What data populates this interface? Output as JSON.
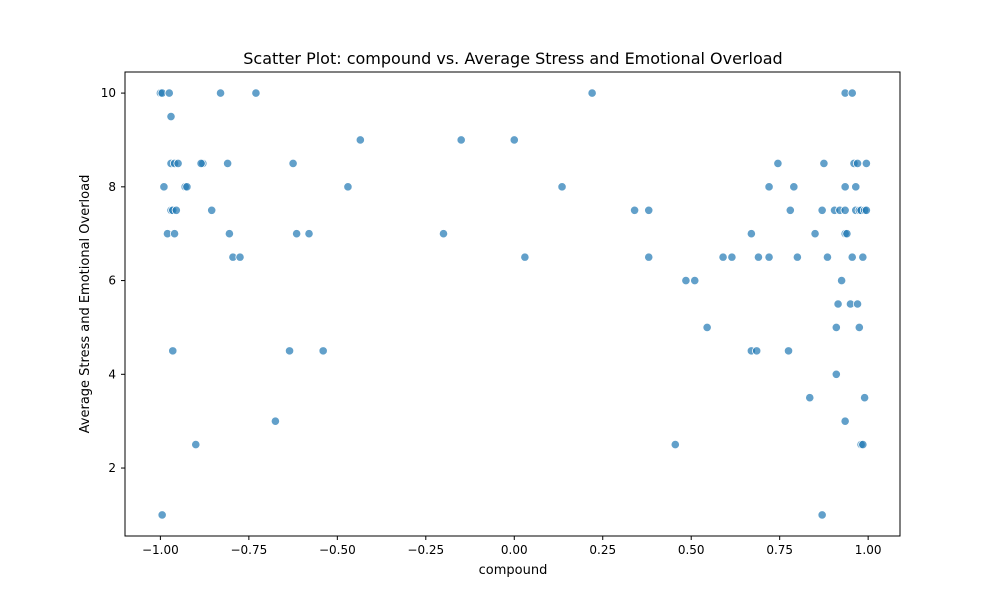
{
  "chart_data": {
    "type": "scatter",
    "title": "Scatter Plot: compound vs. Average Stress and Emotional Overload",
    "xlabel": "compound",
    "ylabel": "Average Stress and Emotional Overload",
    "xlim": [
      -1.1,
      1.09
    ],
    "ylim": [
      0.55,
      10.45
    ],
    "xticks": [
      -1.0,
      -0.75,
      -0.5,
      -0.25,
      0.0,
      0.25,
      0.5,
      0.75,
      1.0
    ],
    "xtick_labels": [
      "−1.00",
      "−0.75",
      "−0.50",
      "−0.25",
      "0.00",
      "0.25",
      "0.50",
      "0.75",
      "1.00"
    ],
    "yticks": [
      2,
      4,
      6,
      8,
      10
    ],
    "ytick_labels": [
      "2",
      "4",
      "6",
      "8",
      "10"
    ],
    "grid": false,
    "color": "#1f77b4",
    "points": [
      [
        -1.0,
        10
      ],
      [
        -0.995,
        10
      ],
      [
        -0.975,
        10
      ],
      [
        -0.83,
        10
      ],
      [
        -0.73,
        10
      ],
      [
        -0.97,
        9.5
      ],
      [
        -0.97,
        8.5
      ],
      [
        -0.96,
        8.5
      ],
      [
        -0.95,
        8.5
      ],
      [
        -0.88,
        8.5
      ],
      [
        -0.885,
        8.5
      ],
      [
        -0.81,
        8.5
      ],
      [
        -0.625,
        8.5
      ],
      [
        -0.99,
        8
      ],
      [
        -0.93,
        8
      ],
      [
        -0.925,
        8
      ],
      [
        -0.97,
        7.5
      ],
      [
        -0.965,
        7.5
      ],
      [
        -0.955,
        7.5
      ],
      [
        -0.855,
        7.5
      ],
      [
        -0.98,
        7
      ],
      [
        -0.96,
        7
      ],
      [
        -0.805,
        7
      ],
      [
        -0.615,
        7
      ],
      [
        -0.58,
        7
      ],
      [
        -0.795,
        6.5
      ],
      [
        -0.775,
        6.5
      ],
      [
        -0.965,
        4.5
      ],
      [
        -0.635,
        4.5
      ],
      [
        -0.54,
        4.5
      ],
      [
        -0.675,
        3
      ],
      [
        -0.9,
        2.5
      ],
      [
        -0.995,
        1
      ],
      [
        -0.435,
        9
      ],
      [
        -0.15,
        9
      ],
      [
        0.0,
        9
      ],
      [
        -0.47,
        8
      ],
      [
        -0.2,
        7
      ],
      [
        0.135,
        8
      ],
      [
        0.22,
        10
      ],
      [
        0.03,
        6.5
      ],
      [
        0.34,
        7.5
      ],
      [
        0.38,
        7.5
      ],
      [
        0.38,
        6.5
      ],
      [
        0.485,
        6
      ],
      [
        0.51,
        6
      ],
      [
        0.545,
        5
      ],
      [
        0.455,
        2.5
      ],
      [
        0.59,
        6.5
      ],
      [
        0.615,
        6.5
      ],
      [
        0.67,
        7
      ],
      [
        0.69,
        6.5
      ],
      [
        0.72,
        6.5
      ],
      [
        0.67,
        4.5
      ],
      [
        0.685,
        4.5
      ],
      [
        0.72,
        8
      ],
      [
        0.745,
        8.5
      ],
      [
        0.775,
        4.5
      ],
      [
        0.78,
        7.5
      ],
      [
        0.79,
        8
      ],
      [
        0.8,
        6.5
      ],
      [
        0.835,
        3.5
      ],
      [
        0.85,
        7
      ],
      [
        0.87,
        7.5
      ],
      [
        0.875,
        8.5
      ],
      [
        0.885,
        6.5
      ],
      [
        0.87,
        1
      ],
      [
        0.905,
        7.5
      ],
      [
        0.92,
        7.5
      ],
      [
        0.91,
        5
      ],
      [
        0.915,
        5.5
      ],
      [
        0.91,
        4
      ],
      [
        0.925,
        6
      ],
      [
        0.935,
        10
      ],
      [
        0.955,
        10
      ],
      [
        0.935,
        8
      ],
      [
        0.935,
        7.5
      ],
      [
        0.935,
        7
      ],
      [
        0.94,
        7
      ],
      [
        0.95,
        5.5
      ],
      [
        0.955,
        6.5
      ],
      [
        0.935,
        3
      ],
      [
        0.96,
        8.5
      ],
      [
        0.965,
        8
      ],
      [
        0.97,
        8.5
      ],
      [
        0.965,
        7.5
      ],
      [
        0.975,
        7.5
      ],
      [
        0.98,
        7.5
      ],
      [
        0.99,
        7.5
      ],
      [
        0.995,
        7.5
      ],
      [
        0.995,
        8.5
      ],
      [
        0.97,
        5.5
      ],
      [
        0.975,
        5
      ],
      [
        0.985,
        6.5
      ],
      [
        0.98,
        2.5
      ],
      [
        0.985,
        2.5
      ],
      [
        0.99,
        3.5
      ]
    ]
  }
}
